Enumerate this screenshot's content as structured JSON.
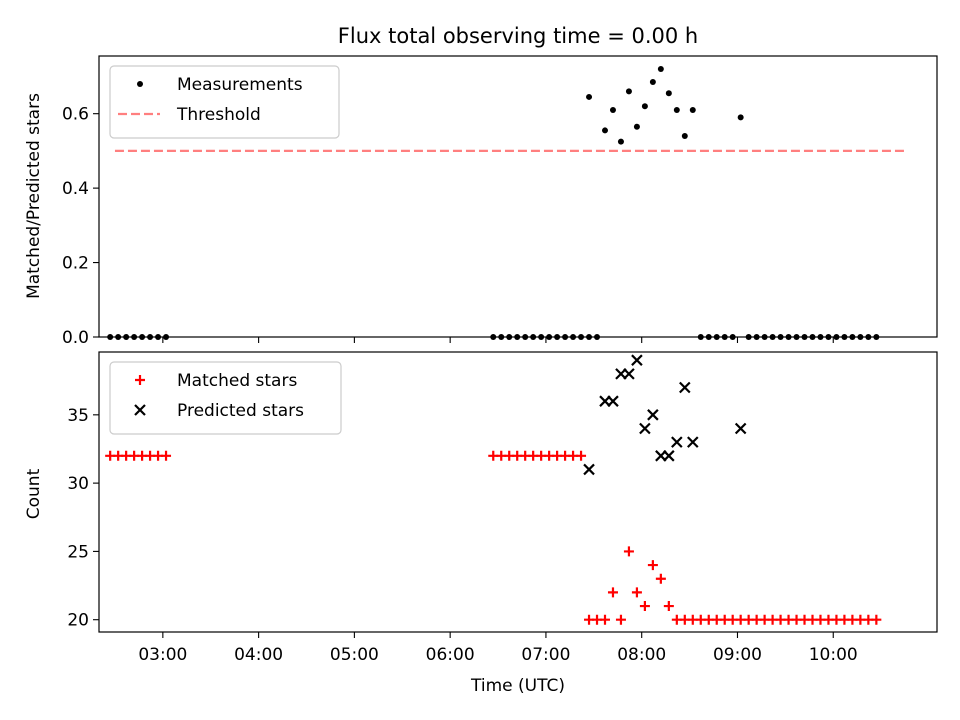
{
  "chart_data": {
    "title": "Flux total observing time = 0.00 h",
    "xlabel": "Time (UTC)",
    "x_tick_labels": [
      "03:00",
      "04:00",
      "05:00",
      "06:00",
      "07:00",
      "08:00",
      "09:00",
      "10:00"
    ],
    "xlim": [
      "02:20",
      "11:05"
    ],
    "panels": [
      {
        "type": "scatter",
        "ylabel": "Matched/Predicted stars",
        "ylim": [
          0,
          0.755
        ],
        "y_ticks": [
          0,
          0.2,
          0.4,
          0.6
        ],
        "y_tick_labels": [
          "0.0",
          "0.2",
          "0.4",
          "0.6"
        ],
        "legend_position": "top-left",
        "series": [
          {
            "name": "Measurements",
            "marker": "dot",
            "color": "#000000",
            "points": [
              [
                "02:27",
                0
              ],
              [
                "02:32",
                0
              ],
              [
                "02:37",
                0
              ],
              [
                "02:42",
                0
              ],
              [
                "02:47",
                0
              ],
              [
                "02:52",
                0
              ],
              [
                "02:57",
                0
              ],
              [
                "03:02",
                0
              ],
              [
                "06:27",
                0
              ],
              [
                "06:32",
                0
              ],
              [
                "06:37",
                0
              ],
              [
                "06:42",
                0
              ],
              [
                "06:47",
                0
              ],
              [
                "06:52",
                0
              ],
              [
                "06:57",
                0
              ],
              [
                "07:02",
                0
              ],
              [
                "07:07",
                0
              ],
              [
                "07:12",
                0
              ],
              [
                "07:17",
                0
              ],
              [
                "07:22",
                0
              ],
              [
                "07:27",
                0
              ],
              [
                "07:27",
                0.645
              ],
              [
                "07:32",
                0
              ],
              [
                "07:37",
                0.555
              ],
              [
                "07:42",
                0.61
              ],
              [
                "07:47",
                0.525
              ],
              [
                "07:52",
                0.66
              ],
              [
                "07:57",
                0.565
              ],
              [
                "08:02",
                0.62
              ],
              [
                "08:07",
                0.685
              ],
              [
                "08:12",
                0.72
              ],
              [
                "08:17",
                0.655
              ],
              [
                "08:22",
                0.61
              ],
              [
                "08:27",
                0.54
              ],
              [
                "08:32",
                0.61
              ],
              [
                "08:37",
                0
              ],
              [
                "08:42",
                0
              ],
              [
                "08:47",
                0
              ],
              [
                "08:52",
                0
              ],
              [
                "08:57",
                0
              ],
              [
                "09:02",
                0.59
              ],
              [
                "09:07",
                0
              ],
              [
                "09:12",
                0
              ],
              [
                "09:17",
                0
              ],
              [
                "09:22",
                0
              ],
              [
                "09:27",
                0
              ],
              [
                "09:32",
                0
              ],
              [
                "09:37",
                0
              ],
              [
                "09:42",
                0
              ],
              [
                "09:47",
                0
              ],
              [
                "09:52",
                0
              ],
              [
                "09:57",
                0
              ],
              [
                "10:02",
                0
              ],
              [
                "10:07",
                0
              ],
              [
                "10:12",
                0
              ],
              [
                "10:17",
                0
              ],
              [
                "10:22",
                0
              ],
              [
                "10:27",
                0
              ]
            ]
          },
          {
            "name": "Threshold",
            "marker": "dashed-line",
            "color": "#ff7f7f",
            "points": [
              [
                "02:30",
                0.5
              ],
              [
                "10:45",
                0.5
              ]
            ]
          }
        ]
      },
      {
        "type": "scatter",
        "ylabel": "Count",
        "ylim": [
          19.1,
          39.6
        ],
        "y_ticks": [
          20,
          25,
          30,
          35
        ],
        "y_tick_labels": [
          "20",
          "25",
          "30",
          "35"
        ],
        "legend_position": "top-left",
        "series": [
          {
            "name": "Matched stars",
            "marker": "plus",
            "color": "#ff0000",
            "points": [
              [
                "02:27",
                32
              ],
              [
                "02:32",
                32
              ],
              [
                "02:37",
                32
              ],
              [
                "02:42",
                32
              ],
              [
                "02:47",
                32
              ],
              [
                "02:52",
                32
              ],
              [
                "02:57",
                32
              ],
              [
                "03:02",
                32
              ],
              [
                "06:27",
                32
              ],
              [
                "06:32",
                32
              ],
              [
                "06:37",
                32
              ],
              [
                "06:42",
                32
              ],
              [
                "06:47",
                32
              ],
              [
                "06:52",
                32
              ],
              [
                "06:57",
                32
              ],
              [
                "07:02",
                32
              ],
              [
                "07:07",
                32
              ],
              [
                "07:12",
                32
              ],
              [
                "07:17",
                32
              ],
              [
                "07:22",
                32
              ],
              [
                "07:27",
                20
              ],
              [
                "07:32",
                20
              ],
              [
                "07:37",
                20
              ],
              [
                "07:42",
                22
              ],
              [
                "07:47",
                20
              ],
              [
                "07:52",
                25
              ],
              [
                "07:57",
                22
              ],
              [
                "08:02",
                21
              ],
              [
                "08:07",
                24
              ],
              [
                "08:12",
                23
              ],
              [
                "08:17",
                21
              ],
              [
                "08:22",
                20
              ],
              [
                "08:27",
                20
              ],
              [
                "08:32",
                20
              ],
              [
                "08:37",
                20
              ],
              [
                "08:42",
                20
              ],
              [
                "08:47",
                20
              ],
              [
                "08:52",
                20
              ],
              [
                "08:57",
                20
              ],
              [
                "09:02",
                20
              ],
              [
                "09:07",
                20
              ],
              [
                "09:12",
                20
              ],
              [
                "09:17",
                20
              ],
              [
                "09:22",
                20
              ],
              [
                "09:27",
                20
              ],
              [
                "09:32",
                20
              ],
              [
                "09:37",
                20
              ],
              [
                "09:42",
                20
              ],
              [
                "09:47",
                20
              ],
              [
                "09:52",
                20
              ],
              [
                "09:57",
                20
              ],
              [
                "10:02",
                20
              ],
              [
                "10:07",
                20
              ],
              [
                "10:12",
                20
              ],
              [
                "10:17",
                20
              ],
              [
                "10:22",
                20
              ],
              [
                "10:27",
                20
              ]
            ]
          },
          {
            "name": "Predicted stars",
            "marker": "x",
            "color": "#000000",
            "points": [
              [
                "07:27",
                31
              ],
              [
                "07:37",
                36
              ],
              [
                "07:42",
                36
              ],
              [
                "07:47",
                38
              ],
              [
                "07:52",
                38
              ],
              [
                "07:57",
                39
              ],
              [
                "08:02",
                34
              ],
              [
                "08:07",
                35
              ],
              [
                "08:12",
                32
              ],
              [
                "08:17",
                32
              ],
              [
                "08:22",
                33
              ],
              [
                "08:27",
                37
              ],
              [
                "08:32",
                33
              ],
              [
                "09:02",
                34
              ]
            ]
          }
        ]
      }
    ]
  }
}
